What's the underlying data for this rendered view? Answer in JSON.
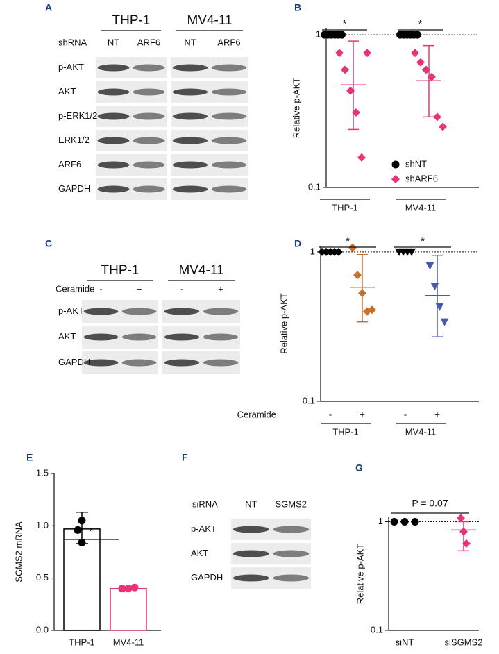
{
  "panels": {
    "A": {
      "label": "A",
      "cell_lines": [
        "THP-1",
        "MV4-11"
      ],
      "lane_header": "shRNA",
      "lanes": [
        "NT",
        "ARF6"
      ],
      "rows": [
        "p-AKT",
        "AKT",
        "p-ERK1/2",
        "ERK1/2",
        "ARF6",
        "GAPDH"
      ]
    },
    "C": {
      "label": "C",
      "cell_lines": [
        "THP-1",
        "MV4-11"
      ],
      "lane_header": "Ceramide",
      "lanes": [
        "-",
        "+"
      ],
      "rows": [
        "p-AKT",
        "AKT",
        "GAPDH"
      ]
    },
    "F": {
      "label": "F",
      "lane_header": "siRNA",
      "lanes": [
        "NT",
        "SGMS2"
      ],
      "rows": [
        "p-AKT",
        "AKT",
        "GAPDH"
      ]
    }
  },
  "chart_data": [
    {
      "type": "scatter",
      "label": "B",
      "y_label": "Relative p-AKT",
      "log_y": true,
      "ylim": [
        0.1,
        1.1
      ],
      "yticks": [
        0.1,
        1
      ],
      "reference_line": 1,
      "categories": [
        "THP-1",
        "MV4-11"
      ],
      "legend": "lower right",
      "series": [
        {
          "name": "shNT",
          "color": "#000000",
          "marker": "circle",
          "values": [
            [
              1,
              1,
              1,
              1,
              1,
              1
            ],
            [
              1,
              1,
              1,
              1,
              1,
              1
            ]
          ]
        },
        {
          "name": "shARF6",
          "color": "#e6347a",
          "marker": "diamond",
          "values": [
            [
              0.76,
              0.59,
              0.43,
              0.31,
              0.157,
              0.76
            ],
            [
              0.76,
              0.66,
              0.59,
              0.53,
              0.29,
              0.25
            ]
          ],
          "mean": [
            0.47,
            0.5
          ],
          "error_low": [
            0.24,
            0.29
          ],
          "error_high": [
            0.91,
            0.85
          ]
        }
      ],
      "significance": [
        "*",
        "*"
      ]
    },
    {
      "type": "scatter",
      "label": "D",
      "y_label": "Relative p-AKT",
      "log_y": true,
      "ylim": [
        0.1,
        1.1
      ],
      "yticks": [
        0.1,
        1
      ],
      "reference_line": 1,
      "categories": [
        "THP-1",
        "MV4-11"
      ],
      "x_label": "Ceramide",
      "treatment_labels": [
        "-",
        "+"
      ],
      "series": [
        {
          "colors": [
            "#000000",
            "#000000"
          ],
          "markers": [
            "diamond",
            "triangle"
          ],
          "values": [
            [
              1,
              1,
              1,
              1,
              1
            ],
            [
              1,
              1,
              1,
              1
            ]
          ]
        },
        {
          "colors": [
            "#c8702c",
            "#4a5aa8"
          ],
          "markers": [
            "diamond",
            "triangle"
          ],
          "values": [
            [
              1.07,
              0.7,
              0.53,
              0.4,
              0.41
            ],
            [
              0.81,
              0.59,
              0.43,
              0.34
            ]
          ],
          "mean": [
            0.58,
            0.51
          ],
          "error_low": [
            0.34,
            0.27
          ],
          "error_high": [
            0.96,
            0.95
          ]
        }
      ],
      "significance": [
        "*",
        "*"
      ]
    },
    {
      "type": "bar",
      "label": "E",
      "y_label": "SGMS2 mRNA",
      "categories": [
        "THP-1",
        "MV4-11"
      ],
      "values": [
        0.97,
        0.4
      ],
      "error_low": [
        0.83,
        0.39
      ],
      "error_high": [
        1.13,
        0.42
      ],
      "points": [
        [
          1.05,
          0.96,
          0.84
        ],
        [
          0.4,
          0.4,
          0.41
        ]
      ],
      "colors": [
        "#000000",
        "#e6347a"
      ],
      "ylim": [
        0,
        1.5
      ],
      "yticks": [
        {
          "value": 0,
          "label": "0.0"
        },
        {
          "value": 0.5,
          "label": "0.5"
        },
        {
          "value": 1,
          "label": "1.0"
        },
        {
          "value": 1.5,
          "label": "1.5"
        }
      ],
      "significance": "*"
    },
    {
      "type": "scatter",
      "label": "G",
      "y_label": "Relative p-AKT",
      "log_y": true,
      "ylim": [
        0.1,
        1.1
      ],
      "yticks": [
        0.1,
        1
      ],
      "reference_line": 1,
      "categories": [
        "siNT",
        "siSGMS2"
      ],
      "series": [
        {
          "colors": [
            "#000000",
            "#e6347a"
          ],
          "markers": [
            "circle",
            "diamond"
          ],
          "values": [
            [
              1,
              1,
              1
            ],
            [
              1.08,
              0.81,
              0.63
            ]
          ],
          "mean": [
            null,
            0.84
          ],
          "error_low": [
            null,
            0.54
          ],
          "error_high": [
            null,
            1.0
          ]
        }
      ],
      "significance": "P = 0.07"
    }
  ]
}
